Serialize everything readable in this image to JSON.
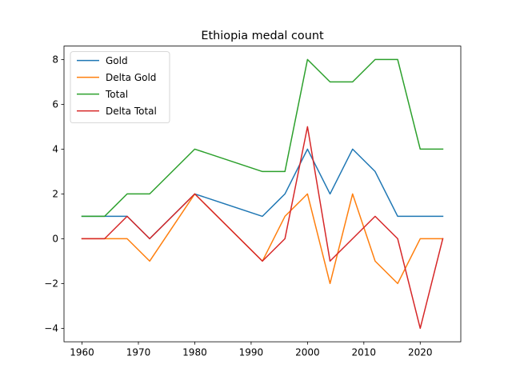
{
  "chart_data": {
    "type": "line",
    "title": "Ethiopia medal count",
    "xlabel": "",
    "ylabel": "",
    "x": [
      1960,
      1964,
      1968,
      1972,
      1980,
      1992,
      1996,
      2000,
      2004,
      2008,
      2012,
      2016,
      2020,
      2024
    ],
    "series": [
      {
        "name": "Gold",
        "color": "#1f77b4",
        "values": [
          1,
          1,
          1,
          0,
          2,
          1,
          2,
          4,
          2,
          4,
          3,
          1,
          1,
          1
        ]
      },
      {
        "name": "Delta Gold",
        "color": "#ff7f0e",
        "values": [
          0,
          0,
          0,
          -1,
          2,
          -1,
          1,
          2,
          -2,
          2,
          -1,
          -2,
          0,
          0
        ]
      },
      {
        "name": "Total",
        "color": "#2ca02c",
        "values": [
          1,
          1,
          2,
          2,
          4,
          3,
          3,
          8,
          7,
          7,
          8,
          8,
          4,
          4
        ]
      },
      {
        "name": "Delta Total",
        "color": "#d62728",
        "values": [
          0,
          0,
          1,
          0,
          2,
          -1,
          0,
          5,
          -1,
          0,
          1,
          0,
          -4,
          0
        ]
      }
    ],
    "xlim": [
      1956.8,
      2027.2
    ],
    "ylim": [
      -4.6,
      8.6
    ],
    "xticks": [
      1960,
      1970,
      1980,
      1990,
      2000,
      2010,
      2020
    ],
    "yticks": [
      -4,
      -2,
      0,
      2,
      4,
      6,
      8
    ],
    "grid": false,
    "legend_position": "top-left"
  }
}
